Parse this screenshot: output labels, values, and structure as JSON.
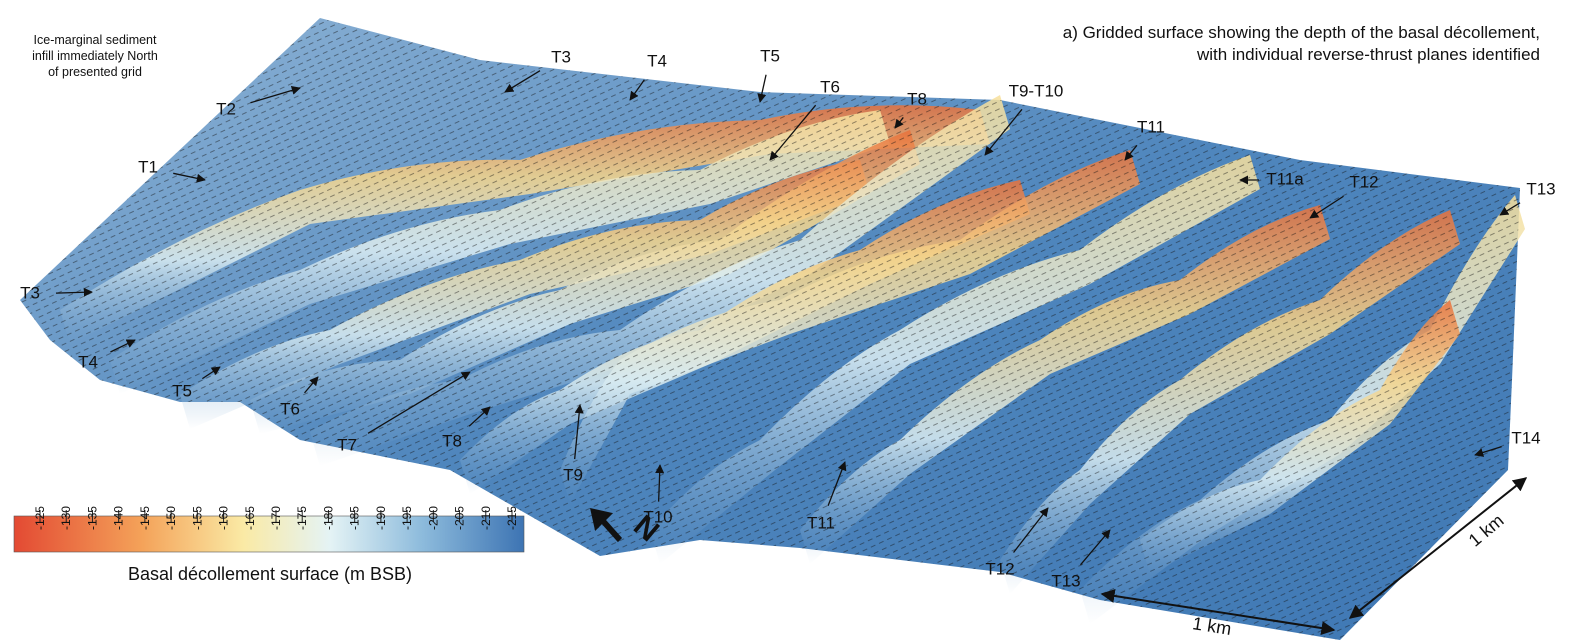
{
  "title": [
    "a) Gridded surface showing the depth of the basal décollement,",
    "with individual reverse-thrust planes identified"
  ],
  "note": [
    "Ice-marginal sediment",
    "infill immediately North",
    "of presented grid"
  ],
  "labels": [
    "T2",
    "T3",
    "T4",
    "T5",
    "T6",
    "T1",
    "T8",
    "T9-T10",
    "T11",
    "T11a",
    "T12",
    "T13",
    "T3",
    "T4",
    "T5",
    "T6",
    "T7",
    "T8",
    "T9",
    "T10",
    "T11",
    "T12",
    "T13",
    "T14"
  ],
  "colorbar": {
    "title": "Basal décollement surface (m BSB)",
    "ticks": [
      -125,
      -130,
      -135,
      -140,
      -145,
      -150,
      -155,
      -160,
      -165,
      -170,
      -175,
      -180,
      -185,
      -190,
      -195,
      -200,
      -205,
      -210,
      -215
    ]
  },
  "scale": [
    "1 km",
    "1 km"
  ],
  "north": "N"
}
